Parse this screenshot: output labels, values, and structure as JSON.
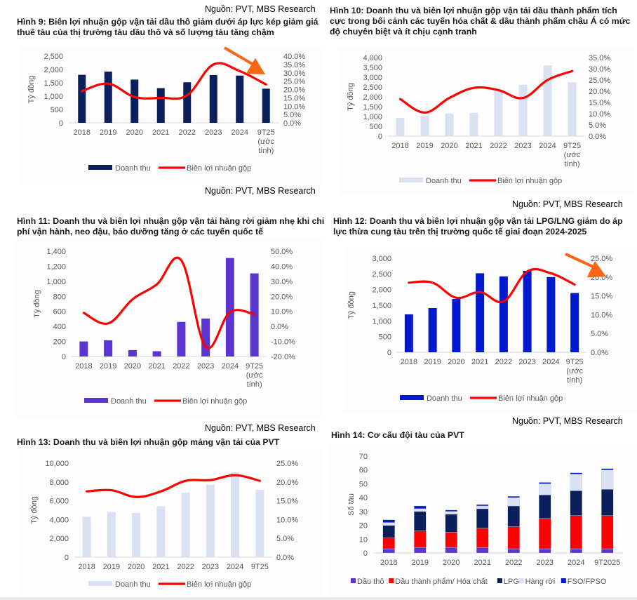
{
  "source_label": "Nguồn: PVT, MBS Research",
  "chart_data": [
    {
      "id": "fig9",
      "type": "bar",
      "title": "Hình 9: Biên lợi nhuận gộp vận tải dầu thô giảm dưới áp lực kép giảm giá thuê tàu của thị trường tàu dầu thô và số lượng tàu tăng chậm",
      "categories": [
        "2018",
        "2019",
        "2020",
        "2021",
        "2022",
        "2023",
        "2024",
        "9T25 (ước tính)"
      ],
      "category_lines": [
        [
          "2018"
        ],
        [
          "2019"
        ],
        [
          "2020"
        ],
        [
          "2021"
        ],
        [
          "2022"
        ],
        [
          "2023"
        ],
        [
          "2024"
        ],
        [
          "9T25",
          "(ước",
          "tính)"
        ]
      ],
      "ylabel": "Tỷ đồng",
      "ylim": [
        0,
        2500
      ],
      "yticks": [
        "0",
        "500",
        "1,000",
        "1,500",
        "2,000",
        "2,500"
      ],
      "y2lim": [
        0,
        40
      ],
      "y2ticks": [
        "0.0%",
        "5.0%",
        "10.0%",
        "15.0%",
        "20.0%",
        "25.0%",
        "30.0%",
        "35.0%",
        "40.0%"
      ],
      "series": [
        {
          "name": "Doanh thu",
          "kind": "bar",
          "axis": "left",
          "color": "#0b1f5c",
          "values": [
            1800,
            1920,
            1620,
            1300,
            1520,
            1790,
            1770,
            1280
          ]
        },
        {
          "name": "Biên lợi nhuận gộp",
          "kind": "line",
          "axis": "right",
          "color": "#ff0000",
          "values": [
            19.0,
            23.5,
            15.5,
            15.0,
            16.5,
            35.0,
            31.0,
            23.0
          ]
        }
      ],
      "annotation": "arrow-down-right",
      "legend": "bottom",
      "source": "Nguồn: PVT, MBS Research"
    },
    {
      "id": "fig10",
      "type": "bar",
      "title": "Hình 10: Doanh thu và biên lợi nhuận gộp vận tải dầu thành phẩm tích cực trong bối cảnh các tuyến hóa chất & dầu thành phẩm châu Á có mức độ chuyên biệt và ít chịu cạnh tranh",
      "categories": [
        "2018",
        "2019",
        "2020",
        "2021",
        "2022",
        "2023",
        "2024",
        "9T25 (ước tính)"
      ],
      "category_lines": [
        [
          "2018"
        ],
        [
          "2019"
        ],
        [
          "2020"
        ],
        [
          "2021"
        ],
        [
          "2022"
        ],
        [
          "2023"
        ],
        [
          "2024"
        ],
        [
          "9T25",
          "(ước",
          "tính)"
        ]
      ],
      "ylabel": "Tỷ đồng",
      "ylim": [
        0,
        4000
      ],
      "yticks": [
        "0",
        "500",
        "1,000",
        "1,500",
        "2,000",
        "2,500",
        "3,000",
        "3,500",
        "4,000"
      ],
      "y2lim": [
        0,
        35
      ],
      "y2ticks": [
        "0.0%",
        "5.0%",
        "10.0%",
        "15.0%",
        "20.0%",
        "25.0%",
        "30.0%",
        "35.0%"
      ],
      "series": [
        {
          "name": "Doanh thu",
          "kind": "bar",
          "axis": "left",
          "color": "#d9e1f2",
          "values": [
            930,
            1040,
            1150,
            1190,
            2360,
            2620,
            3600,
            2740
          ]
        },
        {
          "name": "Biên lợi nhuận gộp",
          "kind": "line",
          "axis": "right",
          "color": "#ff0000",
          "values": [
            16.5,
            10.5,
            17.0,
            21.5,
            20.5,
            17.0,
            25.0,
            29.0
          ]
        }
      ],
      "legend": "bottom",
      "source": "Nguồn: PVT, MBS Research"
    },
    {
      "id": "fig11",
      "type": "bar",
      "title": "Hình 11: Doanh thu và biên lợi nhuận gộp vận tải hàng rời giảm nhẹ khi chi phí vận hành, neo đậu, bảo dưỡng tăng ở các tuyến quốc tế",
      "categories": [
        "2018",
        "2019",
        "2020",
        "2021",
        "2022",
        "2023",
        "2024",
        "9T25 (ước tính)"
      ],
      "category_lines": [
        [
          "2018"
        ],
        [
          "2019"
        ],
        [
          "2020"
        ],
        [
          "2021"
        ],
        [
          "2022"
        ],
        [
          "2023"
        ],
        [
          "2024"
        ],
        [
          "9T25",
          "(ước",
          "tính)"
        ]
      ],
      "ylabel": "Tỷ đồng",
      "ylim": [
        0,
        1400
      ],
      "yticks": [
        "0",
        "200",
        "400",
        "600",
        "800",
        "1,000",
        "1,200",
        "1,400"
      ],
      "y2lim": [
        -20,
        50
      ],
      "y2ticks": [
        "-20.0%",
        "-10.0%",
        "0.0%",
        "10.0%",
        "20.0%",
        "30.0%",
        "40.0%",
        "50.0%"
      ],
      "series": [
        {
          "name": "Doanh thu",
          "kind": "bar",
          "axis": "left",
          "color": "#5b35cf",
          "values": [
            200,
            215,
            85,
            70,
            460,
            505,
            1310,
            1105
          ]
        },
        {
          "name": "Biên lợi nhuận gộp",
          "kind": "line",
          "axis": "right",
          "color": "#ff0000",
          "values": [
            9.0,
            2.0,
            18.0,
            28.0,
            44.0,
            -13.5,
            9.5,
            8.0
          ]
        }
      ],
      "legend": "bottom",
      "source": "Nguồn: PVT, MBS Research"
    },
    {
      "id": "fig12",
      "type": "bar",
      "title": "Hình 12: Doanh thu và biên lợi nhuận gộp vận tải LPG/LNG giảm do áp lực thừa cung tàu trên thị trường quốc tế giai đoạn 2024-2025",
      "categories": [
        "2018",
        "2019",
        "2020",
        "2021",
        "2022",
        "2023",
        "2024",
        "9T25 (ước tính)"
      ],
      "category_lines": [
        [
          "2018"
        ],
        [
          "2019"
        ],
        [
          "2020"
        ],
        [
          "2021"
        ],
        [
          "2022"
        ],
        [
          "2023"
        ],
        [
          "2024"
        ],
        [
          "9T25",
          "(ước",
          "tính)"
        ]
      ],
      "ylabel": "Tỷ đồng",
      "ylim": [
        0,
        3000
      ],
      "yticks": [
        "0",
        "500",
        "1,000",
        "1,500",
        "2,000",
        "2,500",
        "3,000"
      ],
      "y2lim": [
        0,
        25
      ],
      "y2ticks": [
        "0.0%",
        "5.0%",
        "10.0%",
        "15.0%",
        "20.0%",
        "25.0%"
      ],
      "series": [
        {
          "name": "Doanh thu",
          "kind": "bar",
          "axis": "left",
          "color": "#0019cc",
          "values": [
            1210,
            1410,
            1700,
            2520,
            2420,
            2600,
            2400,
            1890
          ]
        },
        {
          "name": "Biên lợi nhuận gộp",
          "kind": "line",
          "axis": "right",
          "color": "#ff0000",
          "values": [
            18.5,
            18.5,
            14.5,
            16.0,
            13.5,
            21.5,
            21.0,
            18.0
          ]
        }
      ],
      "annotation": "arrow-down-right",
      "legend": "bottom",
      "source": "Nguồn: PVT, MBS Research"
    },
    {
      "id": "fig13",
      "type": "bar",
      "title": "Hình 13: Doanh thu và biên lợi nhuận gộp mảng vận tải của PVT",
      "categories": [
        "2018",
        "2019",
        "2020",
        "2021",
        "2022",
        "2023",
        "2024",
        "9T25"
      ],
      "category_lines": [
        [
          "2018"
        ],
        [
          "2019"
        ],
        [
          "2020"
        ],
        [
          "2021"
        ],
        [
          "2022"
        ],
        [
          "2023"
        ],
        [
          "2024"
        ],
        [
          "9T25"
        ]
      ],
      "ylabel": "Tỷ đồng",
      "ylim": [
        0,
        10000
      ],
      "yticks": [
        "0",
        "2,000",
        "4,000",
        "6,000",
        "8,000",
        "10,000"
      ],
      "y2lim": [
        0,
        25
      ],
      "y2ticks": [
        "0.0%",
        "5.0%",
        "10.0%",
        "15.0%",
        "20.0%",
        "25.0%"
      ],
      "series": [
        {
          "name": "Doanh thu",
          "kind": "bar",
          "axis": "left",
          "color": "#d9e1f2",
          "values": [
            4300,
            4800,
            4700,
            5400,
            6850,
            7700,
            9050,
            7150
          ]
        },
        {
          "name": "Biên lợi nhuận gộp",
          "kind": "line",
          "axis": "right",
          "color": "#ff0000",
          "values": [
            17.5,
            17.8,
            16.0,
            17.5,
            20.3,
            20.5,
            21.8,
            20.3
          ]
        }
      ],
      "legend": "bottom",
      "source": "Nguồn: PVT, MBS Research"
    },
    {
      "id": "fig14",
      "type": "stacked-bar",
      "title": "Hình 14: Cơ cấu đội tàu của PVT",
      "categories": [
        "2018",
        "2019",
        "2020",
        "2021",
        "2022",
        "2023",
        "2024",
        "9T2025"
      ],
      "ylabel": "Số tàu",
      "ylim": [
        0,
        70
      ],
      "yticks": [
        "0",
        "10",
        "20",
        "30",
        "40",
        "50",
        "60",
        "70"
      ],
      "series": [
        {
          "name": "Dầu thô",
          "color": "#5b35cf",
          "values": [
            3,
            4,
            4,
            4,
            3,
            3,
            3,
            3
          ]
        },
        {
          "name": "Dầu thành phẩm/ Hóa chất",
          "color": "#ff0000",
          "values": [
            8,
            12,
            11,
            14,
            16,
            22,
            24,
            24
          ]
        },
        {
          "name": "LPG",
          "color": "#0b1f5c",
          "values": [
            9,
            14,
            13,
            14,
            15,
            17,
            18,
            19
          ]
        },
        {
          "name": "Hàng rời",
          "color": "#d9e1f2",
          "values": [
            2,
            2,
            2,
            2,
            6,
            8,
            12,
            14
          ]
        },
        {
          "name": "FSO/FPSO",
          "color": "#0019cc",
          "values": [
            2,
            2,
            1,
            1,
            1,
            1,
            1,
            1
          ]
        }
      ],
      "legend": "bottom"
    }
  ]
}
